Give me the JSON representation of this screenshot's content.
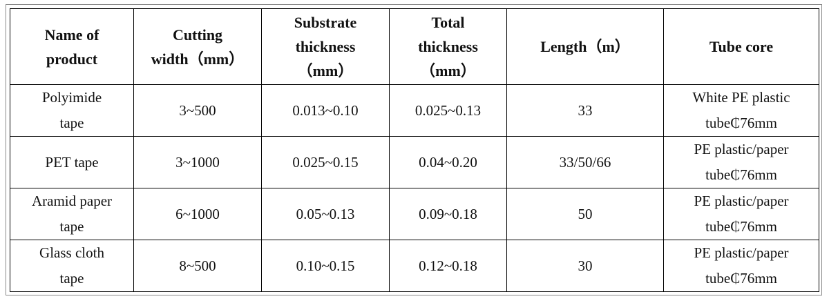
{
  "table": {
    "header": [
      [
        "Name of",
        "product"
      ],
      [
        "Cutting",
        "width（mm）"
      ],
      [
        "Substrate",
        "thickness",
        "（mm）"
      ],
      [
        "Total",
        "thickness",
        "（mm）"
      ],
      [
        "Length（m）"
      ],
      [
        "Tube core"
      ]
    ],
    "rows": [
      [
        [
          "Polyimide",
          "tape"
        ],
        [
          "3~500"
        ],
        [
          "0.013~0.10"
        ],
        [
          "0.025~0.13"
        ],
        [
          "33"
        ],
        [
          "White PE plastic",
          "tube₵76mm"
        ]
      ],
      [
        [
          "PET tape"
        ],
        [
          "3~1000"
        ],
        [
          "0.025~0.15"
        ],
        [
          "0.04~0.20"
        ],
        [
          "33/50/66"
        ],
        [
          "PE plastic/paper",
          "tube₵76mm"
        ]
      ],
      [
        [
          "Aramid paper",
          "tape"
        ],
        [
          "6~1000"
        ],
        [
          "0.05~0.13"
        ],
        [
          "0.09~0.18"
        ],
        [
          "50"
        ],
        [
          "PE plastic/paper",
          "tube₵76mm"
        ]
      ],
      [
        [
          "Glass cloth",
          "tape"
        ],
        [
          "8~500"
        ],
        [
          "0.10~0.15"
        ],
        [
          "0.12~0.18"
        ],
        [
          "30"
        ],
        [
          "PE plastic/paper",
          "tube₵76mm"
        ]
      ]
    ]
  }
}
